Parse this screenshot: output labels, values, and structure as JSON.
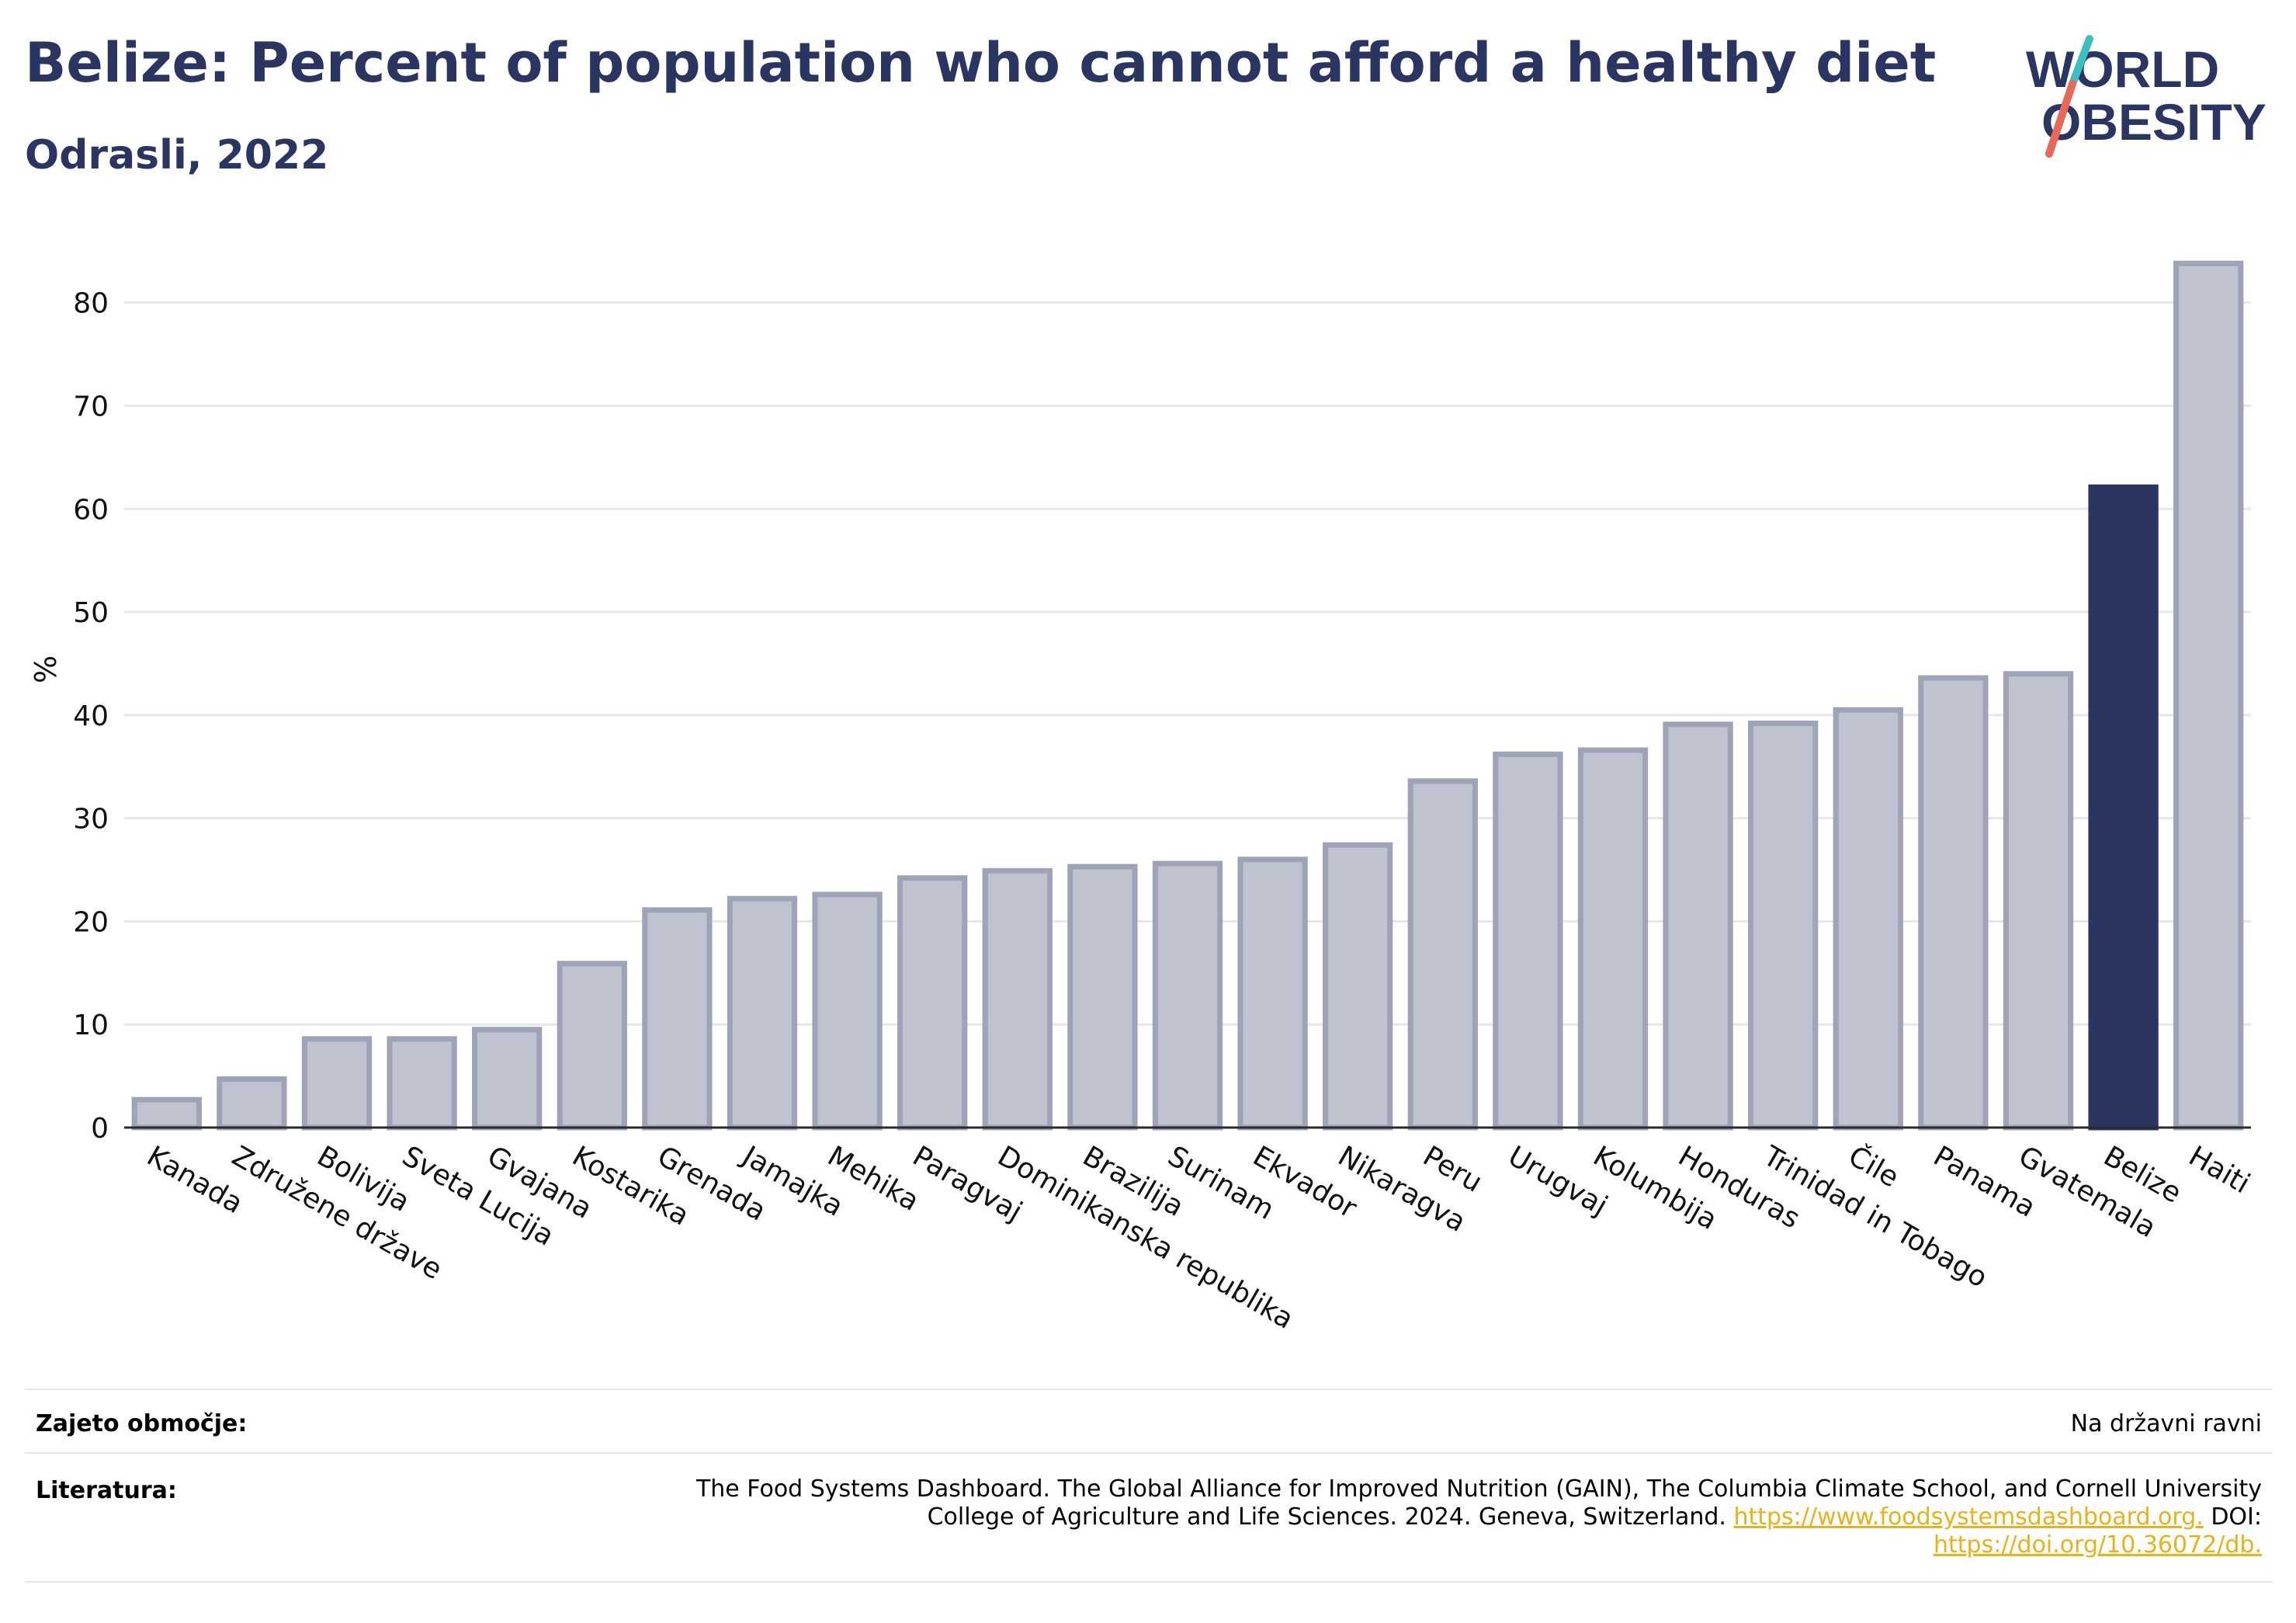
{
  "header": {
    "title": "Belize: Percent of population who cannot afford a healthy diet",
    "subtitle": "Odrasli, 2022"
  },
  "logo": {
    "line1": "WORLD",
    "line2": "OBESITY",
    "accent_teal": "#3bbfbf",
    "accent_coral": "#e8695a"
  },
  "colors": {
    "highlight": "#2b3561",
    "bar": "#bfc2cf",
    "bar_border": "#9ea3b8",
    "grid": "#e7e7ea"
  },
  "chart_data": {
    "type": "bar",
    "ylabel": "%",
    "ylim": [
      0,
      86
    ],
    "yticks": [
      0,
      10,
      20,
      30,
      40,
      50,
      60,
      70,
      80
    ],
    "highlight": "Belize",
    "categories": [
      "Kanada",
      "Združene države",
      "Bolivija",
      "Sveta Lucija",
      "Gvajana",
      "Kostarika",
      "Grenada",
      "Jamajka",
      "Mehika",
      "Paragvaj",
      "Dominikanska republika",
      "Brazilija",
      "Surinam",
      "Ekvador",
      "Nikaragva",
      "Peru",
      "Urugvaj",
      "Kolumbija",
      "Honduras",
      "Trinidad in Tobago",
      "Čile",
      "Panama",
      "Gvatemala",
      "Belize",
      "Haiti"
    ],
    "values": [
      2.7,
      4.7,
      8.6,
      8.6,
      9.5,
      15.9,
      21.1,
      22.2,
      22.6,
      24.2,
      24.9,
      25.3,
      25.6,
      26.0,
      27.4,
      33.6,
      36.2,
      36.6,
      39.1,
      39.2,
      40.5,
      43.6,
      44.0,
      62.1,
      83.8
    ]
  },
  "footer": {
    "coverage_label": "Zajeto območje:",
    "coverage_value": "Na državni ravni",
    "source_label": "Literatura:",
    "source_text_1": "The Food Systems Dashboard. The Global Alliance for Improved Nutrition (GAIN), The Columbia Climate School, and Cornell University",
    "source_text_2": "College of Agriculture and Life Sciences. 2024. Geneva, Switzerland. ",
    "source_link_1": "https://www.foodsystemsdashboard.org.",
    "source_text_3": " DOI:",
    "source_link_2": "https://doi.org/10.36072/db."
  }
}
